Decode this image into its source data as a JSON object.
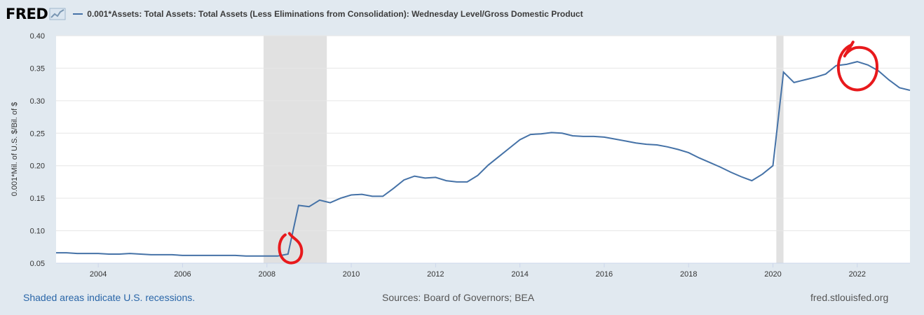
{
  "header": {
    "logo_text": "FRED",
    "logo_icon": "chart-line-icon",
    "series_title": "0.001*Assets: Total Assets: Total Assets (Less Eliminations from Consolidation): Wednesday Level/Gross Domestic Product"
  },
  "footer": {
    "recession_note": "Shaded areas indicate U.S. recessions.",
    "sources": "Sources: Board of Governors; BEA",
    "site": "fred.stlouisfed.org"
  },
  "colors": {
    "background": "#e1e9f0",
    "line": "#4572a7",
    "recession": "#e1e1e1",
    "annotation": "#e8191c"
  },
  "chart_data": {
    "type": "line",
    "title": "0.001*Assets: Total Assets: Total Assets (Less Eliminations from Consolidation): Wednesday Level/Gross Domestic Product",
    "ylabel": "0.001*Mil. of U.S. $/Bil. of $",
    "xlabel": "",
    "xlim": [
      2003.0,
      2023.25
    ],
    "ylim": [
      0.05,
      0.4
    ],
    "grid": true,
    "x_ticks": [
      "2004",
      "2006",
      "2008",
      "2010",
      "2012",
      "2014",
      "2016",
      "2018",
      "2020",
      "2022"
    ],
    "y_ticks": [
      "0.05",
      "0.10",
      "0.15",
      "0.20",
      "0.25",
      "0.30",
      "0.35",
      "0.40"
    ],
    "recessions": [
      [
        2007.92,
        2009.42
      ],
      [
        2020.08,
        2020.25
      ]
    ],
    "annotations": [
      {
        "type": "hand-drawn-circle",
        "x": 2008.6,
        "y": 0.07
      },
      {
        "type": "hand-drawn-circle",
        "x": 2022.0,
        "y": 0.345
      }
    ],
    "series": [
      {
        "x": [
          2003.0,
          2003.25,
          2003.5,
          2003.75,
          2004.0,
          2004.25,
          2004.5,
          2004.75,
          2005.0,
          2005.25,
          2005.5,
          2005.75,
          2006.0,
          2006.25,
          2006.5,
          2006.75,
          2007.0,
          2007.25,
          2007.5,
          2007.75,
          2008.0,
          2008.25,
          2008.5,
          2008.75,
          2009.0,
          2009.25,
          2009.5,
          2009.75,
          2010.0,
          2010.25,
          2010.5,
          2010.75,
          2011.0,
          2011.25,
          2011.5,
          2011.75,
          2012.0,
          2012.25,
          2012.5,
          2012.75,
          2013.0,
          2013.25,
          2013.5,
          2013.75,
          2014.0,
          2014.25,
          2014.5,
          2014.75,
          2015.0,
          2015.25,
          2015.5,
          2015.75,
          2016.0,
          2016.25,
          2016.5,
          2016.75,
          2017.0,
          2017.25,
          2017.5,
          2017.75,
          2018.0,
          2018.25,
          2018.5,
          2018.75,
          2019.0,
          2019.25,
          2019.5,
          2019.75,
          2020.0,
          2020.25,
          2020.5,
          2020.75,
          2021.0,
          2021.25,
          2021.5,
          2021.75,
          2022.0,
          2022.25,
          2022.5,
          2022.75,
          2023.0,
          2023.25
        ],
        "y": [
          0.066,
          0.066,
          0.065,
          0.065,
          0.065,
          0.064,
          0.064,
          0.065,
          0.064,
          0.063,
          0.063,
          0.063,
          0.062,
          0.062,
          0.062,
          0.062,
          0.062,
          0.062,
          0.061,
          0.061,
          0.061,
          0.061,
          0.064,
          0.139,
          0.137,
          0.147,
          0.143,
          0.15,
          0.155,
          0.156,
          0.153,
          0.153,
          0.165,
          0.178,
          0.184,
          0.181,
          0.182,
          0.177,
          0.175,
          0.175,
          0.185,
          0.201,
          0.214,
          0.227,
          0.24,
          0.248,
          0.249,
          0.251,
          0.25,
          0.246,
          0.245,
          0.245,
          0.244,
          0.241,
          0.238,
          0.235,
          0.233,
          0.232,
          0.229,
          0.225,
          0.22,
          0.212,
          0.205,
          0.198,
          0.19,
          0.183,
          0.177,
          0.187,
          0.2,
          0.344,
          0.328,
          0.332,
          0.336,
          0.341,
          0.354,
          0.356,
          0.36,
          0.355,
          0.346,
          0.332,
          0.32,
          0.316
        ]
      }
    ]
  }
}
